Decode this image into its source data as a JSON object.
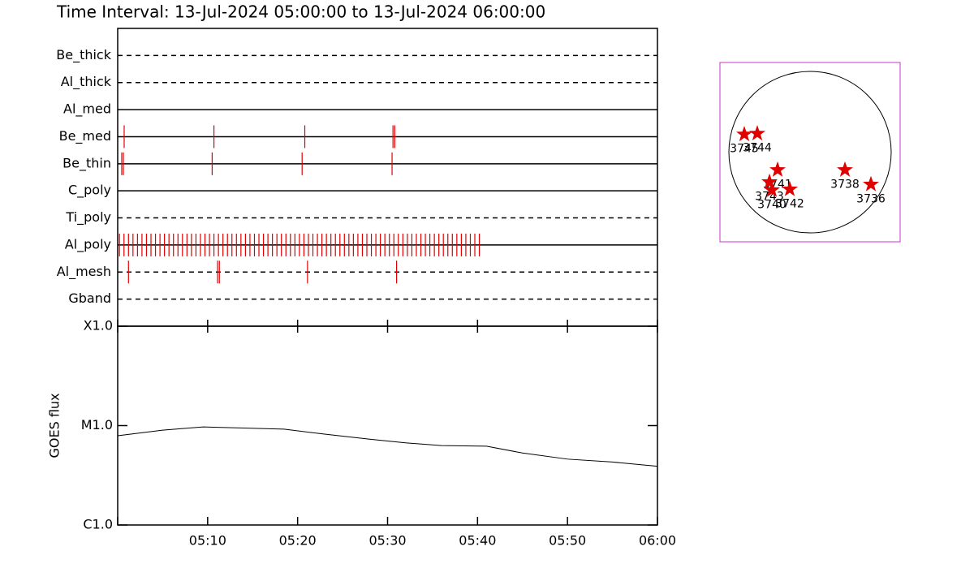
{
  "title": "Time Interval: 13-Jul-2024 05:00:00 to 13-Jul-2024 06:00:00",
  "chart_data": [
    {
      "type": "timeline",
      "xlim": [
        0,
        60
      ],
      "color": "#e00000",
      "rows": [
        {
          "name": "Be_thick",
          "style": "dashed",
          "events": []
        },
        {
          "name": "Al_thick",
          "style": "dashed",
          "events": []
        },
        {
          "name": "Al_med",
          "style": "solid",
          "events": []
        },
        {
          "name": "Be_med",
          "style": "solid",
          "events": [
            0.72,
            10.7,
            20.8,
            30.6,
            30.8
          ]
        },
        {
          "name": "Be_thin",
          "style": "solid",
          "events": [
            0.45,
            0.63,
            10.5,
            20.5,
            30.5
          ]
        },
        {
          "name": "C_poly",
          "style": "solid",
          "events": []
        },
        {
          "name": "Ti_poly",
          "style": "dashed",
          "events": []
        },
        {
          "name": "Al_poly",
          "style": "solid",
          "events": [
            0.2,
            0.7,
            1.2,
            1.7,
            2.2,
            2.7,
            3.2,
            3.7,
            4.2,
            4.7,
            5.2,
            5.7,
            6.2,
            6.7,
            7.2,
            7.7,
            8.2,
            8.7,
            9.2,
            9.7,
            10.2,
            10.7,
            11.2,
            11.7,
            12.2,
            12.7,
            13.2,
            13.7,
            14.2,
            14.7,
            15.2,
            15.7,
            16.2,
            16.7,
            17.2,
            17.7,
            18.2,
            18.7,
            19.2,
            19.7,
            20.2,
            20.7,
            21.2,
            21.7,
            22.2,
            22.7,
            23.2,
            23.7,
            24.2,
            24.7,
            25.2,
            25.7,
            26.2,
            26.7,
            27.2,
            27.7,
            28.2,
            28.7,
            29.2,
            29.7,
            30.2,
            30.7,
            31.2,
            31.7,
            32.2,
            32.7,
            33.2,
            33.7,
            34.2,
            34.7,
            35.2,
            35.7,
            36.2,
            36.7,
            37.2,
            37.7,
            38.2,
            38.7,
            39.2,
            39.7,
            40.2
          ]
        },
        {
          "name": "Al_mesh",
          "style": "dashed",
          "events": [
            1.2,
            11.1,
            11.3,
            21.1,
            31.0
          ]
        },
        {
          "name": "Gband",
          "style": "dashed",
          "events": []
        }
      ]
    },
    {
      "type": "line",
      "ylabel": "GOES flux",
      "log": true,
      "color": "#000000",
      "x": [
        0,
        5,
        9.5,
        18.5,
        23,
        28,
        32,
        36,
        41,
        45,
        50,
        55,
        60
      ],
      "values": [
        7.9e-06,
        9e-06,
        9.7e-06,
        9.2e-06,
        8.2e-06,
        7.3e-06,
        6.7e-06,
        6.3e-06,
        6.2e-06,
        5.3e-06,
        4.6e-06,
        4.3e-06,
        3.9e-06
      ],
      "xlim": [
        0,
        60
      ],
      "xticks": [
        0,
        {
          "value": 10,
          "label": "05:10"
        },
        {
          "value": 20,
          "label": "05:20"
        },
        {
          "value": 30,
          "label": "05:30"
        },
        {
          "value": 40,
          "label": "05:40"
        },
        {
          "value": 50,
          "label": "05:50"
        },
        {
          "value": 60,
          "label": "06:00"
        }
      ],
      "ylim": [
        1e-06,
        0.0001
      ],
      "yticks": [
        {
          "value": 1e-06,
          "label": "C1.0"
        },
        {
          "value": 1e-05,
          "label": "M1.0"
        },
        {
          "value": 0.0001,
          "label": "X1.0"
        }
      ]
    },
    {
      "type": "scatter",
      "color": "#e00000",
      "frame_color": "#cc33cc",
      "xlim": [
        -1.11,
        1.11
      ],
      "ylim": [
        -1.11,
        1.11
      ],
      "labels": [
        "3745",
        "3744",
        "3741",
        "3743",
        "3740",
        "3742",
        "3738",
        "3736"
      ],
      "x": [
        -0.81,
        -0.65,
        -0.4,
        -0.5,
        -0.47,
        -0.25,
        0.43,
        0.75
      ],
      "values": [
        0.22,
        0.23,
        -0.22,
        -0.37,
        -0.47,
        -0.46,
        -0.22,
        -0.4
      ]
    }
  ]
}
